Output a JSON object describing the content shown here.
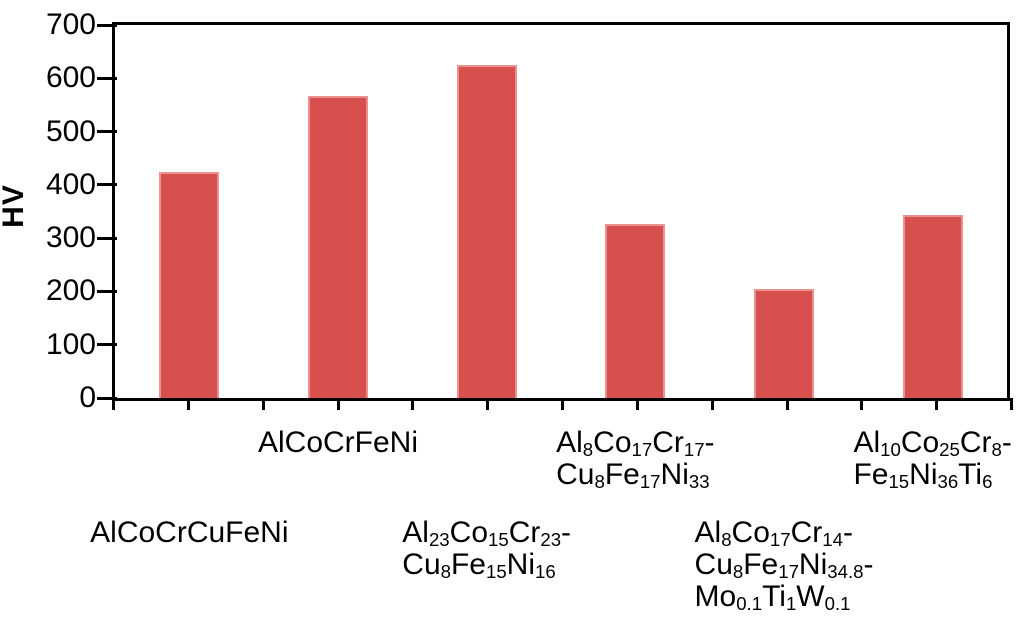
{
  "chart_data": {
    "type": "bar",
    "title": "",
    "ylabel": "HV",
    "xlabel": "",
    "ylim": [
      0,
      700
    ],
    "ytick_interval": 100,
    "yticks": [
      "0",
      "100",
      "200",
      "300",
      "400",
      "500",
      "600",
      "700"
    ],
    "grid": false,
    "legend": false,
    "bar_color": "#D8504D",
    "bar_edge_color": "#E8918F",
    "axis_color": "#000000",
    "categories": [
      {
        "label": "AlCoCrCuFeNi",
        "lines": [
          "AlCoCrCuFeNi"
        ],
        "row": "lower"
      },
      {
        "label": "AlCoCrFeNi",
        "lines": [
          "AlCoCrFeNi"
        ],
        "row": "upper"
      },
      {
        "label": "Al23Co15Cr23-Cu8Fe15Ni16",
        "lines": [
          "Al_23Co_15Cr_23-",
          "Cu_8Fe_15Ni_16"
        ],
        "row": "lower"
      },
      {
        "label": "Al8Co17Cr17-Cu8Fe17Ni33",
        "lines": [
          "Al_8Co_17Cr_17-",
          "Cu_8Fe_17Ni_33"
        ],
        "row": "upper"
      },
      {
        "label": "Al8Co17Cr14-Cu8Fe17Ni34.8-Mo0.1Ti1W0.1",
        "lines": [
          "Al_8Co_17Cr_14-",
          "Cu_8Fe_17Ni_34.8-",
          "Mo_0.1Ti_1W_0.1"
        ],
        "row": "lower"
      },
      {
        "label": "Al10Co25Cr8-Fe15Ni36Ti6",
        "lines": [
          "Al_10Co_25Cr_8-",
          "Fe_15Ni_36Ti_6"
        ],
        "row": "upper"
      }
    ],
    "values": [
      425,
      566,
      625,
      327,
      204,
      343
    ]
  }
}
